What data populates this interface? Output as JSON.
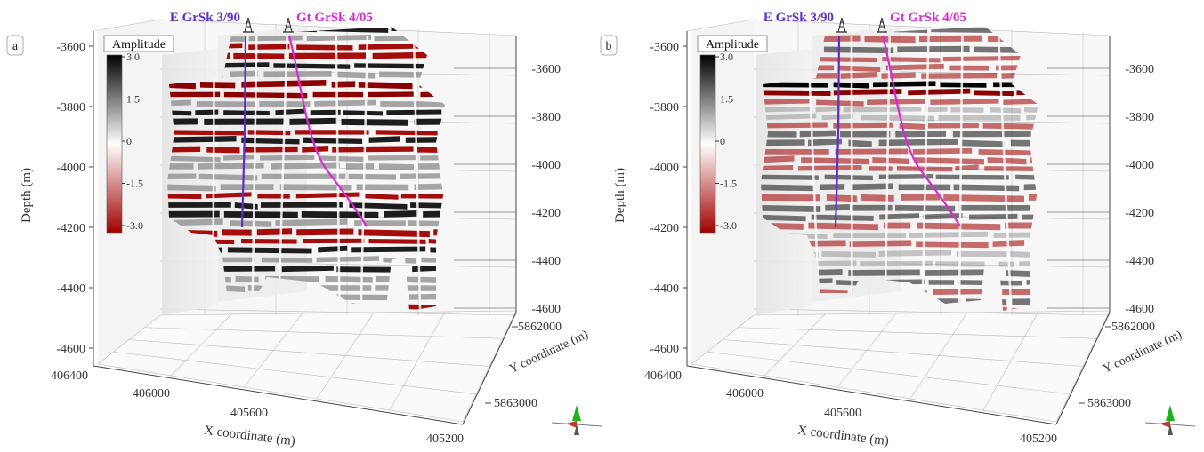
{
  "panels": [
    {
      "letter": "a",
      "well1": "E GrSk 3/90",
      "well2": "Gt GrSk 4/05",
      "colorbar_title": "Amplitude",
      "colorbar_ticks": [
        "3.0",
        "1.5",
        "0",
        "-1.5",
        "-3.0"
      ],
      "depth_label": "Depth (m)",
      "x_label": "X coordinate (m)",
      "y_label": "Y coordinate (m)",
      "left_depth_ticks": [
        "-3600",
        "-3800",
        "-4000",
        "-4200",
        "-4400",
        "-4600"
      ],
      "right_depth_ticks": [
        "-3600",
        "-3800",
        "-4000",
        "-4200",
        "-4400",
        "-4600"
      ],
      "x_ticks": [
        "406400",
        "406000",
        "405600",
        "405200"
      ],
      "y_ticks": [
        "5862000",
        "5863000"
      ],
      "reflector_intensity": 1.0
    },
    {
      "letter": "b",
      "well1": "E GrSk 3/90",
      "well2": "Gt GrSk 4/05",
      "colorbar_title": "Amplitude",
      "colorbar_ticks": [
        "3.0",
        "1.5",
        "0",
        "-1.5",
        "-3.0"
      ],
      "depth_label": "Depth (m)",
      "x_label": "X coordinate (m)",
      "y_label": "Y coordinate (m)",
      "left_depth_ticks": [
        "-3600",
        "-3800",
        "-4000",
        "-4200",
        "-4400",
        "-4600"
      ],
      "right_depth_ticks": [
        "-3600",
        "-3800",
        "-4000",
        "-4200",
        "-4400",
        "-4600"
      ],
      "x_ticks": [
        "406400",
        "406000",
        "405600",
        "405200"
      ],
      "y_ticks": [
        "5862000",
        "5863000"
      ],
      "reflector_intensity": 0.55
    }
  ],
  "colors": {
    "well1": "#5b2fc9",
    "well2": "#d62ad6",
    "amp_pos": "#000000",
    "amp_zero": "#ffffff",
    "amp_neg": "#a00000",
    "grid": "#b8b8b8",
    "box": "#444444",
    "compass_green": "#1db31d",
    "compass_red": "#c0392b"
  },
  "icons": {
    "derrick": "drilling-rig-icon",
    "compass": "north-arrow-icon"
  }
}
